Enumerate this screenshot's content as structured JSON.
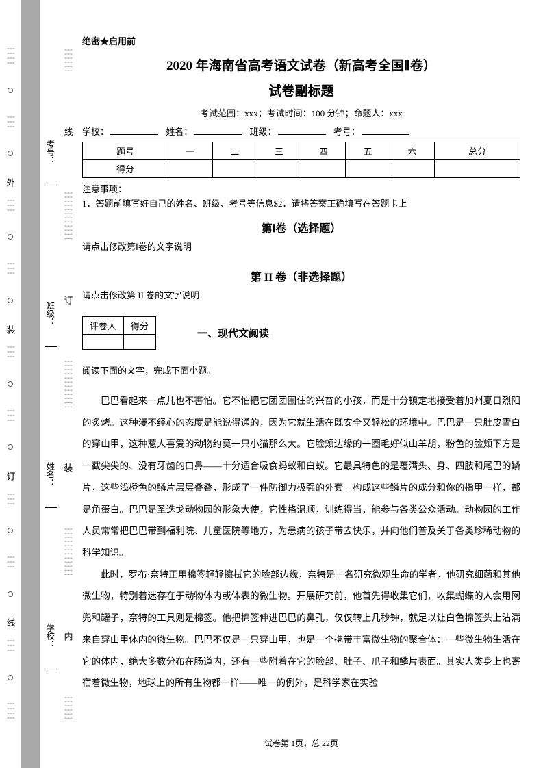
{
  "binding_chars_outer": [
    "外",
    "装",
    "订",
    "线"
  ],
  "binding_chars_inner": [
    "内",
    "装",
    "订",
    "线"
  ],
  "side_labels": [
    "学校：",
    "姓名：",
    "班级：",
    "考号："
  ],
  "confidential": "绝密★启用前",
  "title": "2020 年海南省高考语文试卷（新高考全国Ⅱ卷）",
  "subtitle": "试卷副标题",
  "exam_info": "考试范围：xxx；考试时间：100 分钟；命题人：xxx",
  "fill_labels": {
    "school": "学校：",
    "name": "姓名：",
    "class": "班级：",
    "id": "考号："
  },
  "score_table": {
    "headers": [
      "题号",
      "一",
      "二",
      "三",
      "四",
      "五",
      "六",
      "总分"
    ],
    "row_label": "得分"
  },
  "notice_title": "注意事项：",
  "notice_line": "1．答题前填写好自己的姓名、班级、考号等信息$2．请将答案正确填写在答题卡上",
  "volume1_title": "第Ⅰ卷（选择题）",
  "volume1_desc": "请点击修改第Ⅰ卷的文字说明",
  "volume2_title": "第 II 卷（非选择题）",
  "volume2_desc": "请点击修改第 II 卷的文字说明",
  "grader_table": {
    "col1": "评卷人",
    "col2": "得分"
  },
  "section1_title": "一、现代文阅读",
  "reading_intro": "阅读下面的文字，完成下面小题。",
  "passage1": "巴巴看起来一点儿也不害怕。它不怕把它团团围住的兴奋的小孩，而是十分镇定地接受着加州夏日烈阳的炙烤。这种漫不经心的态度是能说得通的，因为它就生活在既安全又轻松的环境中。巴巴是一只肚皮雪白的穿山甲，这种惹人喜爱的动物约莫一只小猫那么大。它脸颊边缘的一圈毛好似山羊胡，粉色的脸颊下方是一截尖尖的、没有牙齿的口鼻——十分适合吸食蚂蚁和白蚁。它最具特色的是覆满头、身、四肢和尾巴的鳞片，这些浅橙色的鳞片层层叠叠，形成了一件防御力极强的外套。构成这些鳞片的成分和你的指甲一样，都是角蛋白。巴巴是圣迭戈动物园的形象大使，它性格温顺，训练得当，能参与各类公众活动。动物园的工作人员常常把巴巴带到福利院、儿童医院等地方，为患病的孩子带去快乐，并向他们普及关于各类珍稀动物的科学知识。",
  "passage2": "此时，罗布·奈特正用棉签轻轻擦拭它的脸部边缘，奈特是一名研究微观生命的学者，他研究细菌和其他微生物，特别着迷存在于动物体内或体表的微生物。开展研究前，他首先得收集它们，收集蝴蝶的人会用网兜和罐子，奈特的工具则是棉签。他把棉签伸进巴巴的鼻孔，仅仅转上几秒钟，就足以让白色棉签头上沾满来自穿山甲体内的微生物。巴巴不仅是一只穿山甲，也是一个携带丰富微生物的聚合体：一些微生物生活在它的体内，绝大多数分布在肠道内，还有一些附着在它的脸部、肚子、爪子和鳞片表面。其实人类身上也寄宿着微生物，地球上的所有生物都一样——唯一的例外，是科学家在实验",
  "footer": "试卷第 1页，总 22页"
}
